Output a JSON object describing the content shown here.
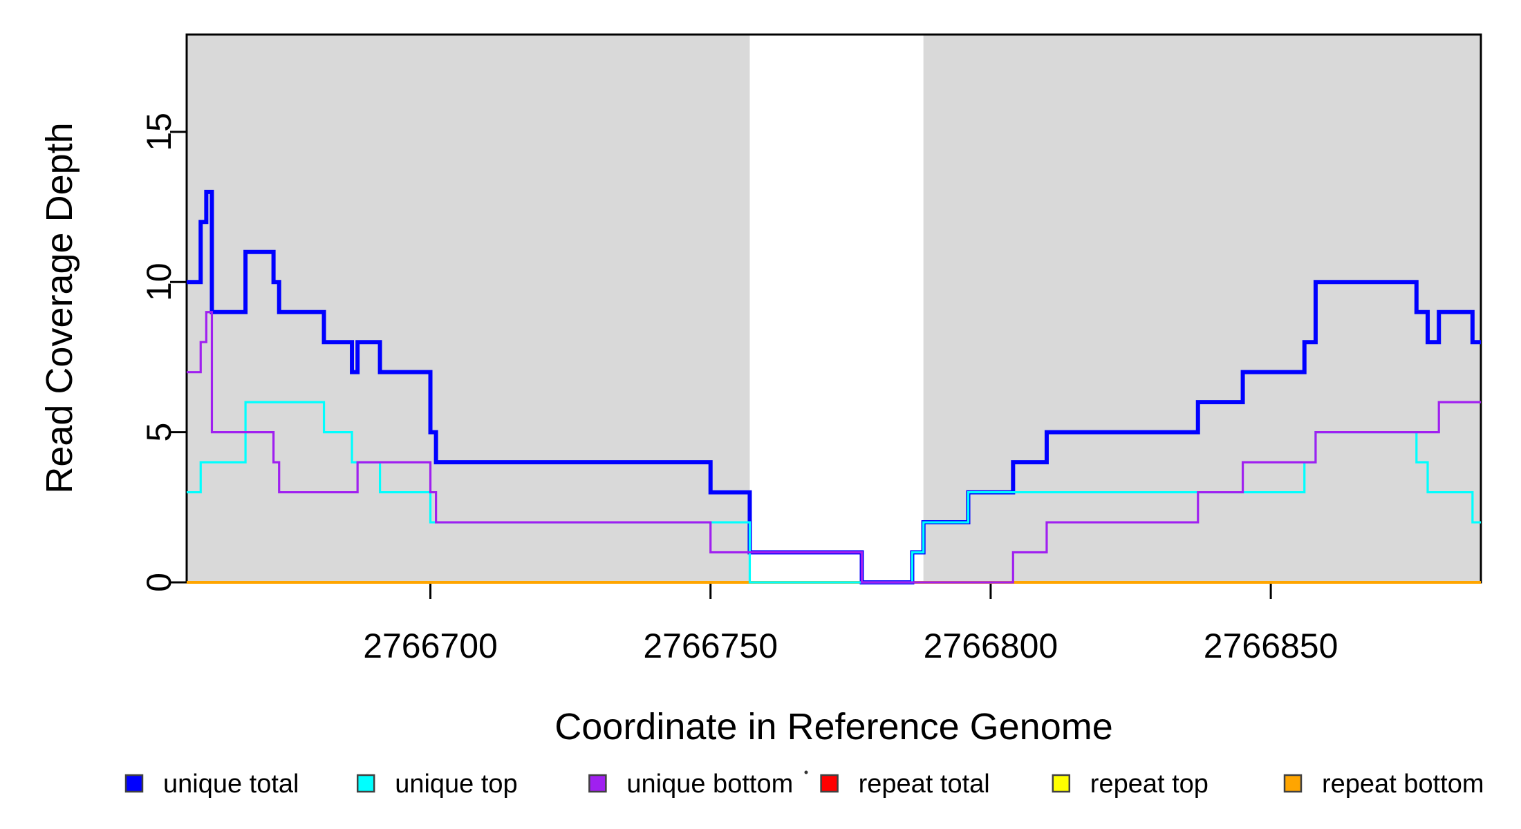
{
  "figure": {
    "background": "#ffffff",
    "plot_box_color": "#000000",
    "shade_color": "#d9d9d9",
    "stray_dot_color": "#333333",
    "legend_marker_border": "#404040"
  },
  "chart_data": {
    "type": "line",
    "subtype": "step-coverage",
    "title": "",
    "xlabel": "Coordinate in Reference Genome",
    "ylabel": "Read Coverage Depth",
    "xlim": [
      2766656.5,
      2766887.5
    ],
    "ylim": [
      0,
      18.24
    ],
    "grid": false,
    "legend_position": "bottom",
    "x_ticks": [
      {
        "value": 2766700,
        "label": "2766700"
      },
      {
        "value": 2766750,
        "label": "2766750"
      },
      {
        "value": 2766800,
        "label": "2766800"
      },
      {
        "value": 2766850,
        "label": "2766850"
      }
    ],
    "y_ticks": [
      {
        "value": 0,
        "label": "0"
      },
      {
        "value": 5,
        "label": "5"
      },
      {
        "value": 10,
        "label": "10"
      },
      {
        "value": 15,
        "label": "15"
      }
    ],
    "shaded_regions": [
      {
        "x_start": 2766656.5,
        "x_end": 2766757
      },
      {
        "x_start": 2766788,
        "x_end": 2766887.5
      }
    ],
    "series": [
      {
        "name": "unique total",
        "color": "#0000ff",
        "line_width": 6,
        "z": 4,
        "points": [
          [
            2766656.5,
            10
          ],
          [
            2766659,
            12
          ],
          [
            2766660,
            13
          ],
          [
            2766661,
            9
          ],
          [
            2766667,
            11
          ],
          [
            2766672,
            10
          ],
          [
            2766673,
            9
          ],
          [
            2766681,
            8
          ],
          [
            2766686,
            7
          ],
          [
            2766687,
            8
          ],
          [
            2766691,
            7
          ],
          [
            2766700,
            5
          ],
          [
            2766701,
            4
          ],
          [
            2766750,
            3
          ],
          [
            2766757,
            1
          ],
          [
            2766777,
            0
          ],
          [
            2766786,
            1
          ],
          [
            2766788,
            2
          ],
          [
            2766796,
            3
          ],
          [
            2766804,
            4
          ],
          [
            2766810,
            5
          ],
          [
            2766837,
            6
          ],
          [
            2766845,
            7
          ],
          [
            2766856,
            8
          ],
          [
            2766858,
            10
          ],
          [
            2766876,
            9
          ],
          [
            2766878,
            8
          ],
          [
            2766880,
            9
          ],
          [
            2766886,
            8
          ]
        ]
      },
      {
        "name": "unique top",
        "color": "#00ffff",
        "line_width": 3.2,
        "z": 5,
        "points": [
          [
            2766656.5,
            3
          ],
          [
            2766659,
            4
          ],
          [
            2766667,
            6
          ],
          [
            2766681,
            5
          ],
          [
            2766686,
            4
          ],
          [
            2766691,
            3
          ],
          [
            2766700,
            2
          ],
          [
            2766757,
            0
          ],
          [
            2766786,
            1
          ],
          [
            2766788,
            2
          ],
          [
            2766796,
            3
          ],
          [
            2766856,
            4
          ],
          [
            2766858,
            5
          ],
          [
            2766876,
            4
          ],
          [
            2766878,
            3
          ],
          [
            2766886,
            2
          ]
        ]
      },
      {
        "name": "unique bottom",
        "color": "#a020f0",
        "line_width": 3.2,
        "z": 6,
        "points": [
          [
            2766656.5,
            7
          ],
          [
            2766659,
            8
          ],
          [
            2766660,
            9
          ],
          [
            2766661,
            5
          ],
          [
            2766672,
            4
          ],
          [
            2766673,
            3
          ],
          [
            2766687,
            4
          ],
          [
            2766700,
            3
          ],
          [
            2766701,
            2
          ],
          [
            2766750,
            1
          ],
          [
            2766777,
            0
          ],
          [
            2766804,
            1
          ],
          [
            2766810,
            2
          ],
          [
            2766837,
            3
          ],
          [
            2766845,
            4
          ],
          [
            2766858,
            5
          ],
          [
            2766880,
            6
          ]
        ]
      },
      {
        "name": "repeat total",
        "color": "#ff0000",
        "line_width": 3.2,
        "z": 1,
        "points": [
          [
            2766656.5,
            0
          ]
        ]
      },
      {
        "name": "repeat top",
        "color": "#ffff00",
        "line_width": 3.2,
        "z": 2,
        "points": [
          [
            2766656.5,
            0
          ]
        ]
      },
      {
        "name": "repeat bottom",
        "color": "#ffa500",
        "line_width": 4,
        "z": 3,
        "points": [
          [
            2766656.5,
            0
          ]
        ]
      }
    ]
  }
}
